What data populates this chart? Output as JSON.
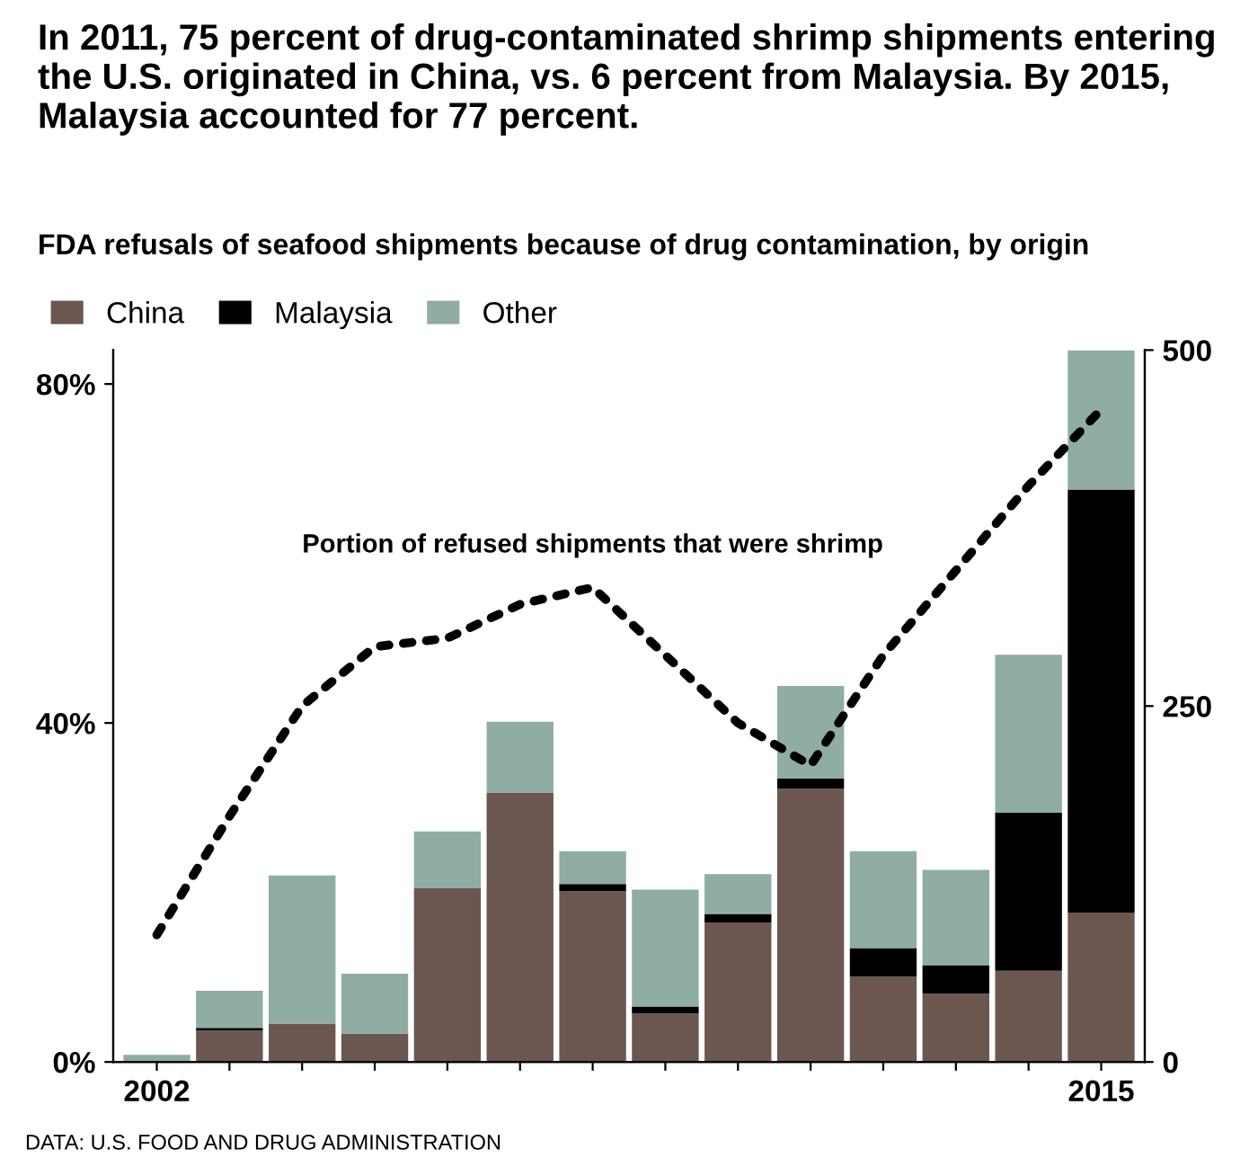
{
  "chart_data": {
    "type": "bar",
    "stacked": true,
    "title": "In 2011, 75 percent of drug-contaminated shrimp shipments entering the U.S. originated in China, vs. 6 percent from Malaysia. By 2015, Malaysia accounted for 77 percent.",
    "subtitle": "FDA refusals of seafood shipments because of drug contamination, by origin",
    "annotations": [
      "DATA: U.S. FOOD AND DRUG ADMINISTRATION"
    ],
    "categories": [
      "2002",
      null,
      null,
      null,
      null,
      null,
      null,
      null,
      null,
      null,
      null,
      null,
      null,
      "2015"
    ],
    "series": [
      {
        "name": "China",
        "color": "#6b5750",
        "values": [
          0,
          22,
          27,
          20,
          122,
          189,
          120,
          34,
          98,
          192,
          60,
          48,
          64,
          105
        ]
      },
      {
        "name": "Malaysia",
        "color": "#000000",
        "values": [
          0,
          2,
          0,
          0,
          0,
          0,
          5,
          5,
          6,
          7,
          20,
          20,
          111,
          297
        ]
      },
      {
        "name": "Other",
        "color": "#8fada2",
        "values": [
          5,
          26,
          104,
          42,
          40,
          50,
          23,
          82,
          28,
          65,
          68,
          67,
          111,
          98
        ]
      },
      {
        "name": "Portion of refused shipments that were shrimp",
        "type": "line",
        "axis": "y2",
        "color": "#000000",
        "line_style": "dotted",
        "marker": "none",
        "values": [
          15,
          29,
          42,
          49,
          50,
          54,
          56,
          48,
          40,
          35,
          48,
          58,
          68,
          77
        ]
      }
    ],
    "ylim": [
      0,
      500
    ],
    "yticks": [
      0,
      250,
      500
    ],
    "y2lim": [
      0,
      84
    ],
    "y2ticks": [
      {
        "value": 0,
        "label": "0%"
      },
      {
        "value": 40,
        "label": "40%"
      },
      {
        "value": 80,
        "label": "80%"
      }
    ],
    "legend": "top left",
    "grid": false
  }
}
